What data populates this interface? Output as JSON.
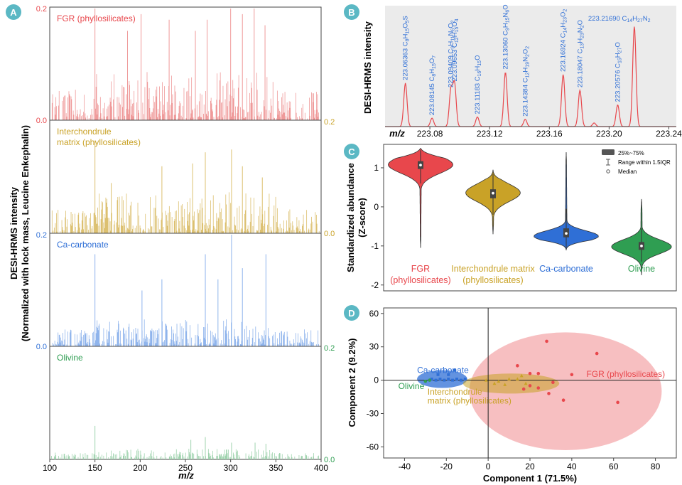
{
  "figure": {
    "panel_labels": [
      "A",
      "B",
      "C",
      "D"
    ],
    "colors": {
      "fgr": "#e8474c",
      "fgr_light": "#ef9a9a",
      "inter": "#c9a227",
      "inter_light": "#dcc070",
      "ca": "#2f6fd6",
      "ca_light": "#8fb4ec",
      "olivine": "#2f9e52",
      "olivine_light": "#9fd3ae",
      "badge": "#5bb8c4",
      "panel_bg": "#ebebeb"
    }
  },
  "chart_data": [
    {
      "id": "A",
      "type": "bar",
      "title": "",
      "xlabel": "m/z",
      "ylabel_line1": "DESI-HRMS intensity",
      "ylabel_line2": "(Normalized with lock mass, Leucine Enkephalin)",
      "xlim": [
        100,
        400
      ],
      "x_ticks": [
        "100",
        "150",
        "200",
        "250",
        "300",
        "350",
        "400"
      ],
      "series": [
        {
          "name": "FGR (phyllosilicates)",
          "ylim": [
            0,
            0.2
          ],
          "axis": "left",
          "tick_top": "0.2",
          "tick_bottom": "0.0",
          "density": 1.0,
          "peaks": [
            {
              "x": 150,
              "v": 0.2
            },
            {
              "x": 300,
              "v": 0.2
            },
            {
              "x": 326,
              "v": 0.2
            },
            {
              "x": 201,
              "v": 0.19
            },
            {
              "x": 232,
              "v": 0.18
            },
            {
              "x": 274,
              "v": 0.18
            },
            {
              "x": 313,
              "v": 0.19
            },
            {
              "x": 338,
              "v": 0.17
            },
            {
              "x": 186,
              "v": 0.16
            },
            {
              "x": 261,
              "v": 0.16
            }
          ]
        },
        {
          "name": "Interchondrule matrix (phyllosilicates)",
          "ylim": [
            0,
            0.2
          ],
          "axis": "right",
          "tick_top": "0.2",
          "tick_bottom": "0.0",
          "density": 0.85,
          "peaks": [
            {
              "x": 150,
              "v": 0.165
            },
            {
              "x": 272,
              "v": 0.145
            },
            {
              "x": 301,
              "v": 0.15
            },
            {
              "x": 224,
              "v": 0.12
            },
            {
              "x": 258,
              "v": 0.125
            },
            {
              "x": 313,
              "v": 0.12
            },
            {
              "x": 168,
              "v": 0.09
            },
            {
              "x": 335,
              "v": 0.1
            }
          ]
        },
        {
          "name": "Ca-carbonate",
          "ylim": [
            0,
            0.2
          ],
          "axis": "left",
          "tick_top": "0.2",
          "tick_bottom": "0.0",
          "density": 0.55,
          "peaks": [
            {
              "x": 301,
              "v": 0.2
            },
            {
              "x": 150,
              "v": 0.165
            },
            {
              "x": 272,
              "v": 0.165
            },
            {
              "x": 313,
              "v": 0.14
            },
            {
              "x": 339,
              "v": 0.165
            },
            {
              "x": 286,
              "v": 0.12
            },
            {
              "x": 224,
              "v": 0.12
            },
            {
              "x": 202,
              "v": 0.1
            }
          ]
        },
        {
          "name": "Olivine",
          "ylim": [
            0,
            0.2
          ],
          "axis": "right",
          "tick_top": "0.2",
          "tick_bottom": "0.0",
          "density": 0.22,
          "peaks": [
            {
              "x": 150,
              "v": 0.06
            },
            {
              "x": 272,
              "v": 0.04
            },
            {
              "x": 256,
              "v": 0.035
            },
            {
              "x": 301,
              "v": 0.03
            },
            {
              "x": 327,
              "v": 0.03
            },
            {
              "x": 339,
              "v": 0.028
            }
          ]
        }
      ]
    },
    {
      "id": "B",
      "type": "line",
      "ylabel": "DESI-HRMS intensity",
      "xlabel": "m/z",
      "xlim": [
        223.05,
        223.245
      ],
      "x_ticks": [
        "223.08",
        "223.12",
        "223.16",
        "223.20",
        "223.24"
      ],
      "x_tick_values": [
        223.08,
        223.12,
        223.16,
        223.2,
        223.24
      ],
      "peaks": [
        {
          "x": 223.06363,
          "h": 0.36,
          "mass": "223.06363",
          "formula": "C8H15O5S",
          "parts": [
            "C",
            "8",
            "H",
            "15",
            "O",
            "5",
            "S",
            ""
          ]
        },
        {
          "x": 223.08145,
          "h": 0.07,
          "mass": "223.08145",
          "formula": "C8H15O7",
          "parts": [
            "C",
            "8",
            "H",
            "15",
            "O",
            "7"
          ]
        },
        {
          "x": 223.09409,
          "h": 0.3,
          "mass": "223.09409",
          "formula": "C9H11N6O2",
          "parts": [
            "C",
            "9",
            "H",
            "11",
            "N",
            "6",
            "O",
            "2"
          ]
        },
        {
          "x": 223.09653,
          "h": 0.35,
          "mass": "223.09653",
          "formula": "C12H15O4",
          "parts": [
            "C",
            "12",
            "H",
            "15",
            "O",
            "4"
          ]
        },
        {
          "x": 223.11183,
          "h": 0.08,
          "mass": "223.11183",
          "formula": "C16H15O",
          "parts": [
            "C",
            "16",
            "H",
            "15",
            "O",
            ""
          ]
        },
        {
          "x": 223.1306,
          "h": 0.45,
          "mass": "223.13060",
          "formula": "C9H15N6O",
          "parts": [
            "C",
            "9",
            "H",
            "15",
            "N",
            "6",
            "O",
            ""
          ]
        },
        {
          "x": 223.14384,
          "h": 0.06,
          "mass": "223.14384",
          "formula": "C12H19N2O2",
          "parts": [
            "C",
            "12",
            "H",
            "19",
            "N",
            "2",
            "O",
            "2"
          ]
        },
        {
          "x": 223.16924,
          "h": 0.43,
          "mass": "223.16924",
          "formula": "C14H23O2",
          "parts": [
            "C",
            "14",
            "H",
            "23",
            "O",
            "2"
          ]
        },
        {
          "x": 223.18047,
          "h": 0.3,
          "mass": "223.18047",
          "formula": "C13H23N2O",
          "parts": [
            "C",
            "13",
            "H",
            "23",
            "N",
            "2",
            "O",
            ""
          ]
        },
        {
          "x": 223.19,
          "h": 0.03,
          "mass": "",
          "formula": "",
          "parts": []
        },
        {
          "x": 223.20576,
          "h": 0.18,
          "mass": "223.20576",
          "formula": "C15H27O",
          "parts": [
            "C",
            "15",
            "H",
            "27",
            "O",
            ""
          ]
        },
        {
          "x": 223.2169,
          "h": 0.83,
          "mass": "223.21690",
          "formula": "C14H27N2",
          "parts": [
            "C",
            "14",
            "H",
            "27",
            "N",
            "2"
          ]
        }
      ]
    },
    {
      "id": "C",
      "type": "violin",
      "ylabel_line1": "Standardized abundance",
      "ylabel_line2": "(Z-score)",
      "ylim": [
        -2.15,
        1.6
      ],
      "y_ticks": [
        -2,
        -1,
        0,
        1
      ],
      "legend": {
        "box": "25%~75%",
        "whisker": "Range within 1.5IQR",
        "median": "Median"
      },
      "groups": [
        {
          "name_line1": "FGR",
          "name_line2": "(phyllosilicates)",
          "color_key": "fgr",
          "median": 1.07,
          "q1": 0.97,
          "q3": 1.17,
          "wlo": 0.6,
          "whi": 1.45,
          "min": -1.05,
          "max": 1.5,
          "mode": 1.08,
          "width_max": 0.95,
          "spread": 0.22
        },
        {
          "name_line1": "Interchondrule matrix",
          "name_line2": "(phyllosilicates)",
          "color_key": "inter",
          "median": 0.35,
          "q1": 0.22,
          "q3": 0.45,
          "wlo": -0.2,
          "whi": 0.85,
          "min": -0.7,
          "max": 0.95,
          "mode": 0.36,
          "width_max": 0.8,
          "spread": 0.22
        },
        {
          "name_line1": "Ca-carbonate",
          "name_line2": "",
          "color_key": "ca",
          "median": -0.68,
          "q1": -0.78,
          "q3": -0.55,
          "wlo": -1.05,
          "whi": -0.05,
          "min": -1.1,
          "max": 1.4,
          "mode": -0.75,
          "width_max": 0.95,
          "spread": 0.14
        },
        {
          "name_line1": "Olivine",
          "name_line2": "",
          "color_key": "olivine",
          "median": -1.0,
          "q1": -1.1,
          "q3": -0.9,
          "wlo": -1.4,
          "whi": -0.55,
          "min": -1.75,
          "max": 0.2,
          "mode": -1.02,
          "width_max": 0.88,
          "spread": 0.18
        }
      ]
    },
    {
      "id": "D",
      "type": "scatter",
      "xlabel": "Component 1 (71.5%)",
      "ylabel": "Component 2 (9.2%)",
      "xlim": [
        -50,
        90
      ],
      "ylim": [
        -70,
        65
      ],
      "x_ticks": [
        -40,
        -20,
        0,
        20,
        40,
        60,
        80
      ],
      "y_ticks": [
        -60,
        -30,
        0,
        30,
        60
      ],
      "ellipses": [
        {
          "name": "FGR (phyllosilicates)",
          "color_key": "fgr",
          "cx": 37,
          "cy": -10,
          "rx": 46,
          "ry": 53,
          "opacity": 0.35
        },
        {
          "name": "Ca-carbonate",
          "color_key": "ca",
          "cx": -22,
          "cy": 1,
          "rx": 12,
          "ry": 8,
          "opacity": 0.75
        },
        {
          "name": "Interchondrule matrix (phyllosilicates)",
          "color_key": "inter",
          "cx": 11,
          "cy": -3,
          "rx": 23,
          "ry": 9,
          "opacity": 0.55
        }
      ],
      "labels": [
        {
          "text": "FGR (phyllosilicates)",
          "color_key": "fgr",
          "x": 47,
          "y": 3
        },
        {
          "text": "Ca-carbonate",
          "color_key": "ca",
          "x": -34,
          "y": 6.5
        },
        {
          "text": "Olivine",
          "color_key": "olivine",
          "x": -43,
          "y": -8
        },
        {
          "text": "Interchondrule",
          "color_key": "inter",
          "x": -29,
          "y": -13
        },
        {
          "text": "matrix (phyllosilicates)",
          "color_key": "inter",
          "x": -29,
          "y": -21
        }
      ],
      "series": [
        {
          "name": "FGR (phyllosilicates)",
          "color_key": "fgr",
          "marker": "circle",
          "points": [
            [
              28,
              35
            ],
            [
              52,
              24
            ],
            [
              14,
              13
            ],
            [
              20,
              6
            ],
            [
              24,
              6
            ],
            [
              40,
              5
            ],
            [
              31,
              -2
            ],
            [
              20,
              -5
            ],
            [
              24,
              -7
            ],
            [
              17,
              -8
            ],
            [
              29,
              -12
            ],
            [
              36,
              -18
            ],
            [
              62,
              -20
            ]
          ]
        },
        {
          "name": "Interchondrule matrix (phyllosilicates)",
          "color_key": "inter",
          "marker": "triangle",
          "points": [
            [
              5,
              -1
            ],
            [
              10,
              1
            ],
            [
              14,
              1
            ],
            [
              16,
              4
            ],
            [
              18,
              -3
            ],
            [
              3,
              -3
            ],
            [
              -1,
              0
            ],
            [
              8,
              -4
            ]
          ]
        },
        {
          "name": "Ca-carbonate",
          "color_key": "ca",
          "marker": "square",
          "points": [
            [
              -27,
              1
            ],
            [
              -25,
              0
            ],
            [
              -23,
              1
            ],
            [
              -21,
              0
            ],
            [
              -19,
              1
            ],
            [
              -17,
              0
            ],
            [
              -15,
              1
            ],
            [
              -13,
              0
            ],
            [
              -11,
              1
            ],
            [
              -19,
              5
            ],
            [
              -24,
              5
            ],
            [
              -16,
              9
            ]
          ]
        },
        {
          "name": "Olivine",
          "color_key": "olivine",
          "marker": "circle",
          "points": [
            [
              -30,
              -1
            ],
            [
              -28,
              0
            ]
          ]
        }
      ]
    }
  ]
}
